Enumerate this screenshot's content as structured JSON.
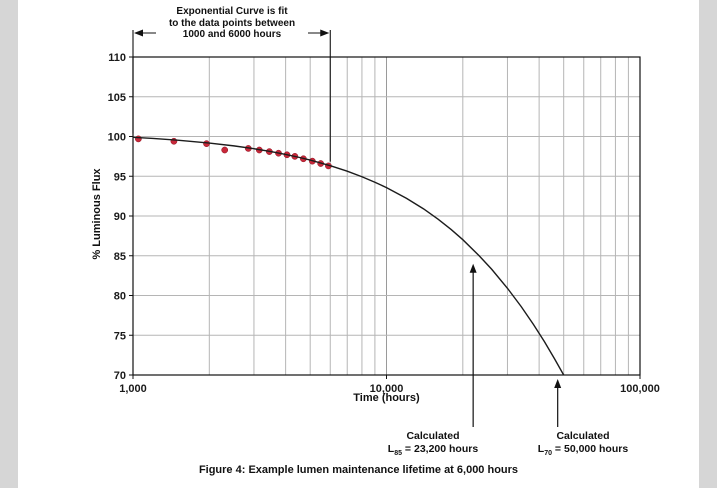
{
  "caption": "Figure 4: Example lumen maintenance lifetime at 6,000 hours",
  "chart_data": {
    "type": "scatter",
    "title": "",
    "xlabel": "Time (hours)",
    "ylabel": "% Luminous Flux",
    "x_scale": "log",
    "xlim": [
      1000,
      100000
    ],
    "ylim": [
      70,
      110
    ],
    "grid": true,
    "y_ticks": [
      70,
      75,
      80,
      85,
      90,
      95,
      100,
      105,
      110
    ],
    "x_ticks": [
      {
        "value": 1000,
        "label": "1,000"
      },
      {
        "value": 10000,
        "label": "10,000"
      },
      {
        "value": 100000,
        "label": "100,000"
      }
    ],
    "series": [
      {
        "name": "measured-data-points",
        "type": "scatter",
        "color": "#c8283a",
        "points": [
          [
            1050,
            99.7
          ],
          [
            1450,
            99.4
          ],
          [
            1950,
            99.1
          ],
          [
            2300,
            98.3
          ],
          [
            2850,
            98.5
          ],
          [
            3150,
            98.3
          ],
          [
            3450,
            98.1
          ],
          [
            3750,
            97.9
          ],
          [
            4050,
            97.7
          ],
          [
            4350,
            97.5
          ],
          [
            4700,
            97.2
          ],
          [
            5100,
            96.9
          ],
          [
            5500,
            96.6
          ],
          [
            5900,
            96.3
          ]
        ]
      },
      {
        "name": "exponential-fit-curve",
        "type": "line",
        "color": "#1c1c1c",
        "points": [
          [
            1000,
            99.9
          ],
          [
            1200,
            99.76
          ],
          [
            1500,
            99.54
          ],
          [
            2000,
            99.18
          ],
          [
            2500,
            98.82
          ],
          [
            3000,
            98.46
          ],
          [
            3500,
            98.1
          ],
          [
            4000,
            97.75
          ],
          [
            4500,
            97.39
          ],
          [
            5000,
            97.04
          ],
          [
            6000,
            96.33
          ],
          [
            7000,
            95.64
          ],
          [
            8000,
            94.94
          ],
          [
            9000,
            94.25
          ],
          [
            10000,
            93.57
          ],
          [
            12000,
            92.22
          ],
          [
            14000,
            90.9
          ],
          [
            16000,
            89.58
          ],
          [
            18000,
            88.29
          ],
          [
            20000,
            87.02
          ],
          [
            23200,
            85.0
          ],
          [
            26000,
            83.3
          ],
          [
            30000,
            80.91
          ],
          [
            34000,
            78.6
          ],
          [
            38000,
            76.35
          ],
          [
            42000,
            74.18
          ],
          [
            46000,
            72.04
          ],
          [
            50000,
            70
          ]
        ]
      }
    ],
    "annotations": {
      "fit_note": {
        "line1": "Exponential Curve is fit",
        "line2": "to the data points between",
        "line3": "1000 and 6000 hours",
        "x_from": 1000,
        "x_to": 6000
      },
      "l85": {
        "label": "Calculated",
        "sym": "L",
        "sub": "85",
        "value": " = 23,200 hours",
        "target_x": 23200,
        "target_y": 85
      },
      "l70": {
        "label": "Calculated",
        "sym": "L",
        "sub": "70",
        "value": " = 50,000 hours",
        "target_x": 50000,
        "target_y": 70
      }
    }
  }
}
